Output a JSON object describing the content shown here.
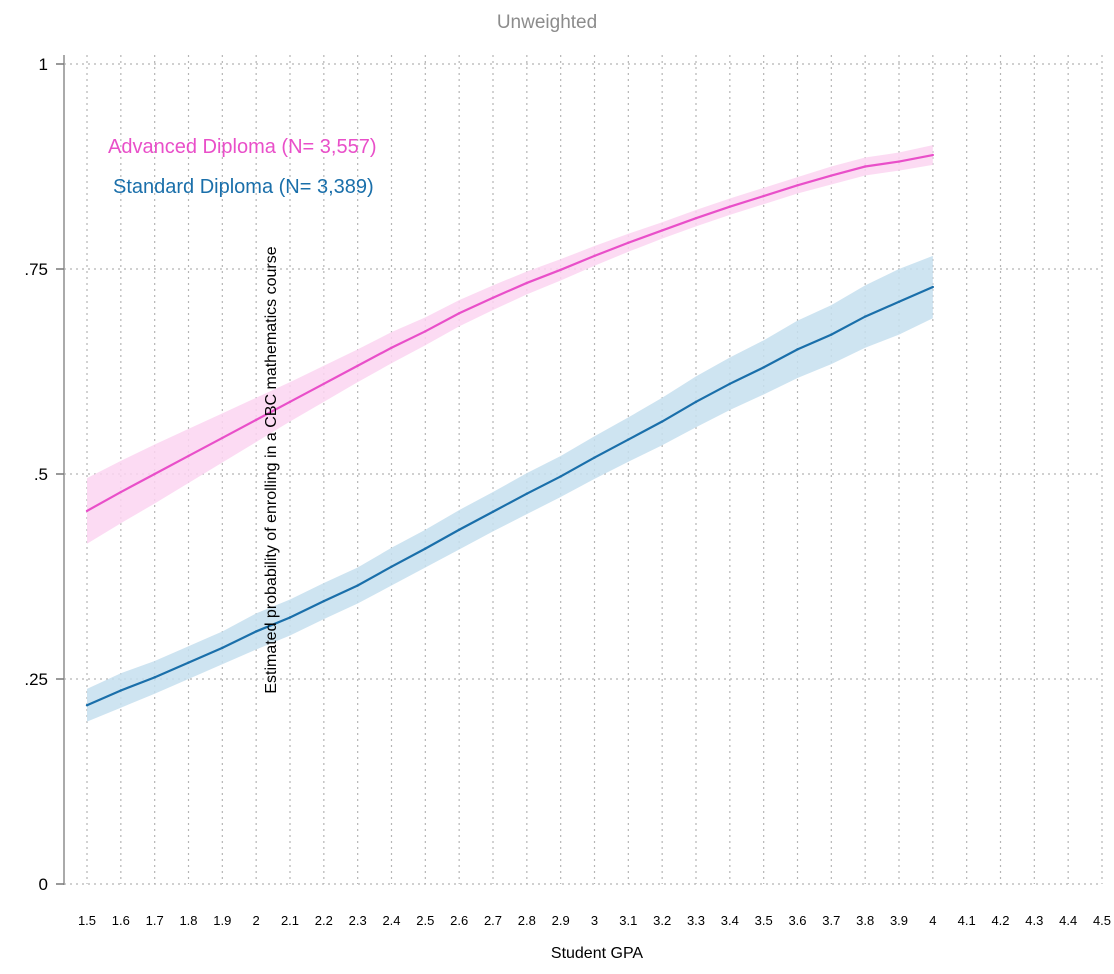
{
  "chart_data": {
    "type": "line",
    "title": "Unweighted",
    "xlabel": "Student GPA",
    "ylabel": "Estimated probability of enrolling in a CBC mathematics course",
    "xlim": [
      1.5,
      4.5
    ],
    "ylim": [
      0,
      1
    ],
    "xticks": [
      "1.5",
      "1.6",
      "1.7",
      "1.8",
      "1.9",
      "2",
      "2.1",
      "2.2",
      "2.3",
      "2.4",
      "2.5",
      "2.6",
      "2.7",
      "2.8",
      "2.9",
      "3",
      "3.1",
      "3.2",
      "3.3",
      "3.4",
      "3.5",
      "3.6",
      "3.7",
      "3.8",
      "3.9",
      "4",
      "4.1",
      "4.2",
      "4.3",
      "4.4",
      "4.5"
    ],
    "yticks": [
      {
        "value": 0,
        "label": "0"
      },
      {
        "value": 0.25,
        "label": ".25"
      },
      {
        "value": 0.5,
        "label": ".5"
      },
      {
        "value": 0.75,
        "label": ".75"
      },
      {
        "value": 1,
        "label": "1"
      }
    ],
    "grid": true,
    "legend_position": "top-left",
    "x": [
      1.5,
      1.6,
      1.7,
      1.8,
      1.9,
      2.0,
      2.1,
      2.2,
      2.3,
      2.4,
      2.5,
      2.6,
      2.7,
      2.8,
      2.9,
      3.0,
      3.1,
      3.2,
      3.3,
      3.4,
      3.5,
      3.6,
      3.7,
      3.8,
      3.9,
      4.0
    ],
    "series": [
      {
        "name": "Advanced Diploma (N= 3,557)",
        "color": "#e94fc9",
        "band_color": "#fbd5f1",
        "values": [
          0.455,
          0.478,
          0.5,
          0.522,
          0.544,
          0.566,
          0.588,
          0.61,
          0.632,
          0.654,
          0.674,
          0.696,
          0.715,
          0.733,
          0.749,
          0.766,
          0.782,
          0.797,
          0.812,
          0.826,
          0.839,
          0.852,
          0.864,
          0.875,
          0.881,
          0.889
        ],
        "lower": [
          0.415,
          0.44,
          0.464,
          0.489,
          0.514,
          0.539,
          0.564,
          0.588,
          0.612,
          0.635,
          0.657,
          0.68,
          0.7,
          0.719,
          0.736,
          0.754,
          0.771,
          0.787,
          0.802,
          0.816,
          0.829,
          0.842,
          0.853,
          0.864,
          0.87,
          0.877
        ],
        "upper": [
          0.495,
          0.516,
          0.536,
          0.555,
          0.574,
          0.593,
          0.612,
          0.632,
          0.652,
          0.673,
          0.691,
          0.712,
          0.73,
          0.747,
          0.762,
          0.778,
          0.793,
          0.807,
          0.822,
          0.836,
          0.849,
          0.862,
          0.875,
          0.886,
          0.892,
          0.901
        ]
      },
      {
        "name": "Standard Diploma (N= 3,389)",
        "color": "#1a6faa",
        "band_color": "#c6dfee",
        "values": [
          0.218,
          0.236,
          0.252,
          0.27,
          0.288,
          0.308,
          0.325,
          0.345,
          0.364,
          0.387,
          0.409,
          0.432,
          0.454,
          0.476,
          0.497,
          0.52,
          0.542,
          0.564,
          0.588,
          0.61,
          0.63,
          0.652,
          0.67,
          0.692,
          0.71,
          0.728
        ],
        "lower": [
          0.198,
          0.215,
          0.232,
          0.25,
          0.268,
          0.286,
          0.303,
          0.323,
          0.342,
          0.364,
          0.386,
          0.408,
          0.43,
          0.451,
          0.472,
          0.494,
          0.515,
          0.535,
          0.557,
          0.578,
          0.597,
          0.617,
          0.634,
          0.654,
          0.67,
          0.69
        ],
        "upper": [
          0.238,
          0.257,
          0.272,
          0.29,
          0.308,
          0.33,
          0.347,
          0.367,
          0.386,
          0.41,
          0.432,
          0.456,
          0.478,
          0.501,
          0.522,
          0.546,
          0.569,
          0.593,
          0.619,
          0.642,
          0.663,
          0.687,
          0.706,
          0.73,
          0.75,
          0.766
        ]
      }
    ]
  }
}
